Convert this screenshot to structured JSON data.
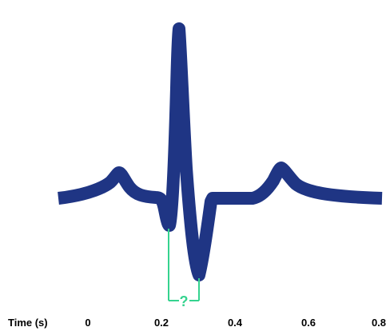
{
  "axis": {
    "label": "Time (s)",
    "ticks": [
      "0",
      "0.2",
      "0.4",
      "0.6",
      "0.8"
    ]
  },
  "interval_marker": {
    "label": "?"
  },
  "colors": {
    "trace": "#1f3584",
    "marker": "#35d38f",
    "text": "#000000"
  }
}
